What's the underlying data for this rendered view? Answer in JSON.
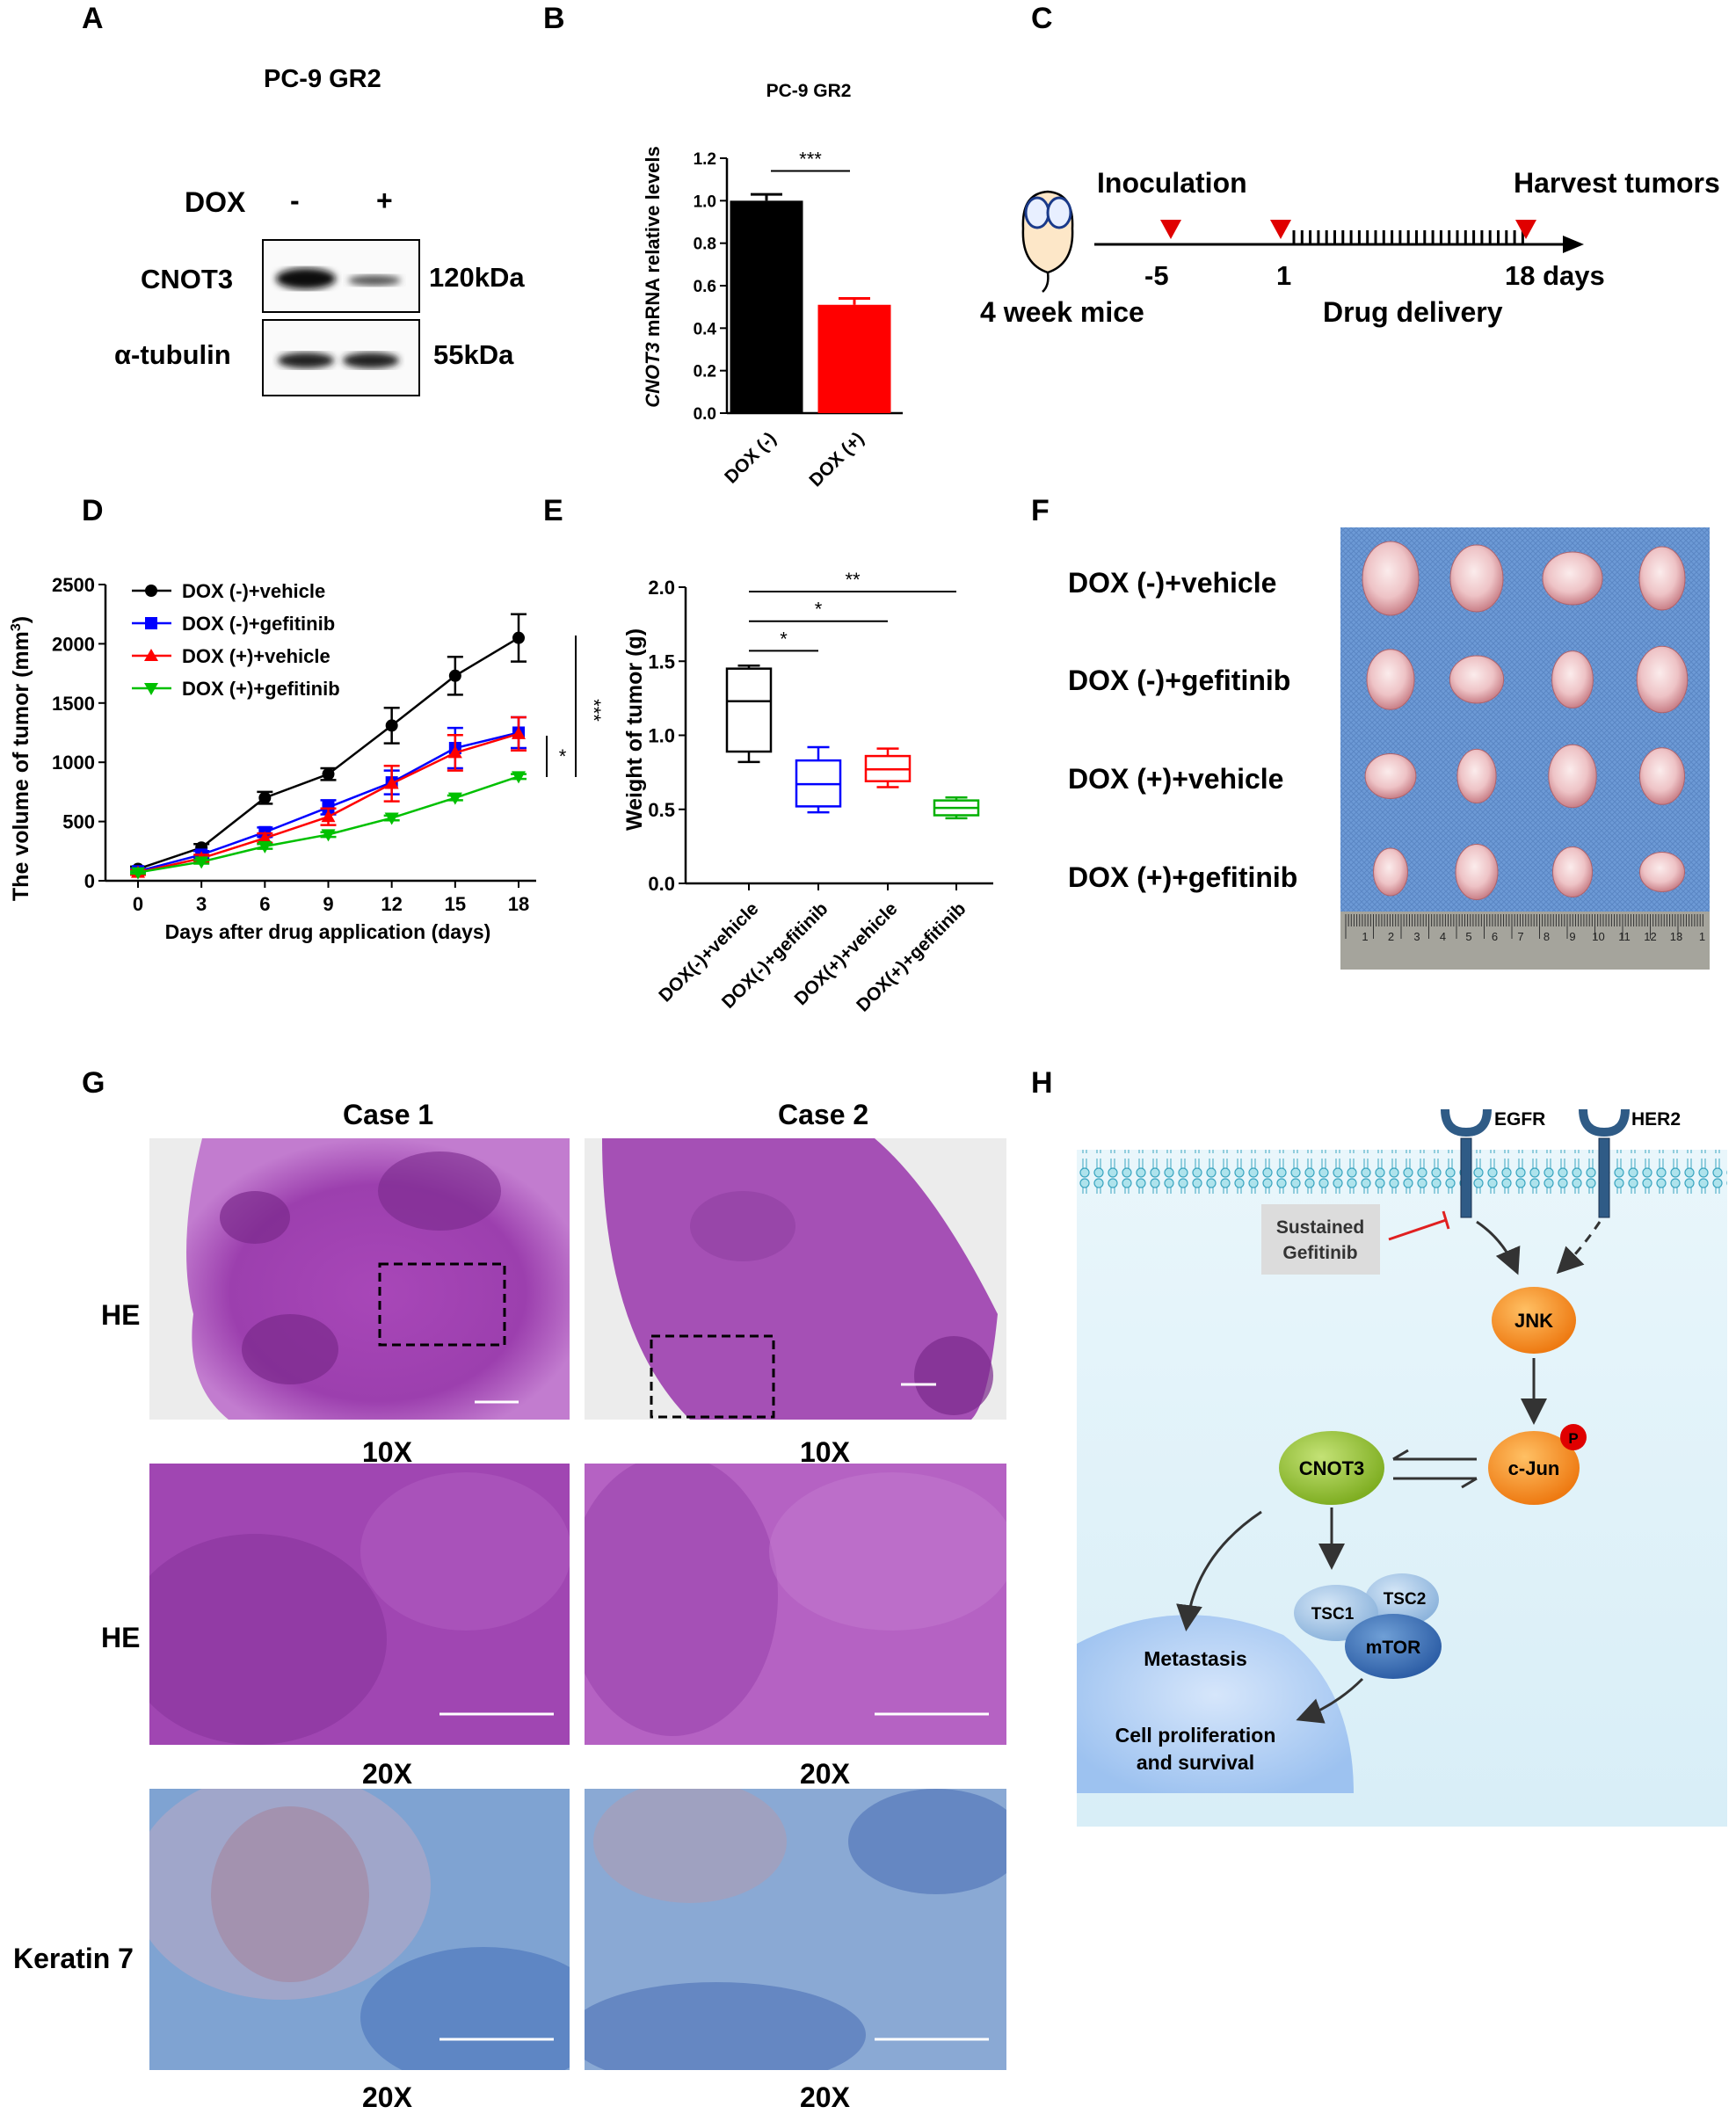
{
  "panels": {
    "A": "A",
    "B": "B",
    "C": "C",
    "D": "D",
    "E": "E",
    "F": "F",
    "G": "G",
    "H": "H"
  },
  "panel_A": {
    "title": "PC-9 GR2",
    "dox_label": "DOX",
    "lane_minus": "-",
    "lane_plus": "+",
    "band1_label": "CNOT3",
    "band1_size": "120kDa",
    "band2_label": "α-tubulin",
    "band2_size": "55kDa"
  },
  "panel_C": {
    "inoculation": "Inoculation",
    "harvest": "Harvest tumors",
    "mice": "4 week mice",
    "day_minus5": "-5",
    "day_1": "1",
    "day_18": "18 days",
    "drug_delivery": "Drug delivery",
    "marker_color": "#e00000"
  },
  "panel_F": {
    "rows": [
      "DOX (-)+vehicle",
      "DOX (-)+gefitinib",
      "DOX (+)+vehicle",
      "DOX (+)+gefitinib"
    ],
    "ruler_numbers": [
      "1",
      "2",
      "3",
      "4",
      "5",
      "6",
      "7",
      "8",
      "9",
      "10",
      "11",
      "12",
      "13",
      "1"
    ]
  },
  "panel_G": {
    "case1": "Case 1",
    "case2": "Case 2",
    "row_labels": [
      "HE",
      "HE",
      "Keratin 7"
    ],
    "mag_row1": "10X",
    "mag_row2": "20X",
    "mag_row3": "20X"
  },
  "panel_H": {
    "egfr": "EGFR",
    "her2": "HER2",
    "sustained": "Sustained",
    "gefitinib": "Gefitinib",
    "jnk": "JNK",
    "cjun": "c-Jun",
    "p": "P",
    "cnot3": "CNOT3",
    "tsc1": "TSC1",
    "tsc2": "TSC2",
    "mtor": "mTOR",
    "metastasis": "Metastasis",
    "prolif1": "Cell proliferation",
    "prolif2": "and survival"
  },
  "chart_data": [
    {
      "id": "B",
      "type": "bar",
      "title": "PC-9 GR2",
      "ylabel_italic": "CNOT3",
      "ylabel_rest": " mRNA relative levels",
      "categories": [
        "DOX (-)",
        "DOX (+)"
      ],
      "values": [
        1.0,
        0.51
      ],
      "errors": [
        0.03,
        0.03
      ],
      "colors": [
        "#000000",
        "#ff0000"
      ],
      "ylim": [
        0,
        1.2
      ],
      "yticks": [
        "0.0",
        "0.2",
        "0.4",
        "0.6",
        "0.8",
        "1.0",
        "1.2"
      ],
      "significance": "***"
    },
    {
      "id": "D",
      "type": "line",
      "xlabel": "Days after drug application (days)",
      "ylabel": "The volume of tumor (mm",
      "ylabel_sup": "3",
      "ylabel_end": ")",
      "x": [
        0,
        3,
        6,
        9,
        12,
        15,
        18
      ],
      "xticks": [
        "0",
        "3",
        "6",
        "9",
        "12",
        "15",
        "18"
      ],
      "ylim": [
        0,
        2500
      ],
      "yticks": [
        "0",
        "500",
        "1000",
        "1500",
        "2000",
        "2500"
      ],
      "series": [
        {
          "name": "DOX (-)+vehicle",
          "color": "#000000",
          "marker": "circle",
          "values": [
            100,
            280,
            700,
            900,
            1310,
            1730,
            2050
          ],
          "errors": [
            20,
            30,
            50,
            50,
            150,
            160,
            200
          ]
        },
        {
          "name": "DOX (-)+gefitinib",
          "color": "#0000ff",
          "marker": "square",
          "values": [
            80,
            220,
            410,
            620,
            830,
            1120,
            1250
          ],
          "errors": [
            20,
            30,
            40,
            60,
            100,
            170,
            130
          ]
        },
        {
          "name": "DOX (+)+vehicle",
          "color": "#ff0000",
          "marker": "triangle-up",
          "values": [
            70,
            190,
            360,
            540,
            820,
            1080,
            1240
          ],
          "errors": [
            20,
            30,
            40,
            70,
            150,
            150,
            140
          ]
        },
        {
          "name": "DOX (+)+gefitinib",
          "color": "#00c000",
          "marker": "triangle-down",
          "values": [
            70,
            160,
            290,
            390,
            530,
            700,
            880
          ],
          "errors": [
            10,
            15,
            20,
            20,
            20,
            20,
            20
          ]
        }
      ],
      "significance": [
        "*",
        "***"
      ]
    },
    {
      "id": "E",
      "type": "box",
      "ylabel": "Weight of tumor (g)",
      "ylim": [
        0,
        2.0
      ],
      "yticks": [
        "0.0",
        "0.5",
        "1.0",
        "1.5",
        "2.0"
      ],
      "categories": [
        "DOX(-)+vehicle",
        "DOX(-)+gefitinib",
        "DOX(+)+vehicle",
        "DOX(+)+gefitinib"
      ],
      "colors": [
        "#000000",
        "#0000ff",
        "#ff0000",
        "#00b000"
      ],
      "boxes": [
        {
          "min": 0.82,
          "q1": 0.89,
          "median": 1.23,
          "q3": 1.45,
          "max": 1.47
        },
        {
          "min": 0.48,
          "q1": 0.52,
          "median": 0.67,
          "q3": 0.83,
          "max": 0.92
        },
        {
          "min": 0.65,
          "q1": 0.69,
          "median": 0.77,
          "q3": 0.86,
          "max": 0.91
        },
        {
          "min": 0.44,
          "q1": 0.46,
          "median": 0.51,
          "q3": 0.56,
          "max": 0.58
        }
      ],
      "significance": [
        {
          "from": 0,
          "to": 1,
          "label": "*"
        },
        {
          "from": 0,
          "to": 2,
          "label": "*"
        },
        {
          "from": 0,
          "to": 3,
          "label": "**"
        }
      ]
    }
  ]
}
